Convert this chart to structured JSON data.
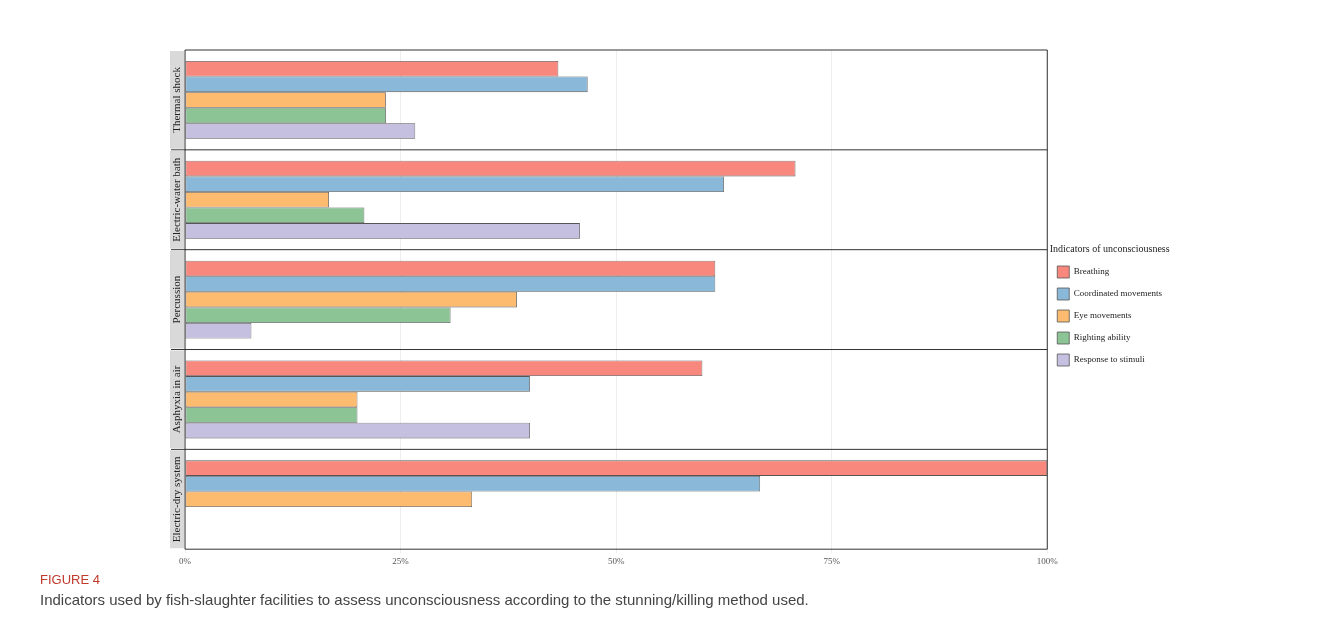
{
  "chart_data": {
    "type": "bar",
    "orientation": "horizontal",
    "legend_title": "Indicators of unconsciousness",
    "legend": "right",
    "grid": "x",
    "categories": [
      "Thermal shock",
      "Electric-water bath",
      "Percussion",
      "Asphyxia in air",
      "Electric-dry system"
    ],
    "series": [
      {
        "name": "Breathing",
        "color": "#f8877e",
        "values": [
          43.3,
          70.8,
          61.5,
          60,
          100
        ]
      },
      {
        "name": "Coordinated movements",
        "color": "#8ab8d8",
        "values": [
          46.7,
          62.5,
          61.5,
          40,
          66.7
        ]
      },
      {
        "name": "Eye movements",
        "color": "#fdbb6f",
        "values": [
          23.3,
          16.7,
          38.5,
          20,
          33.3
        ]
      },
      {
        "name": "Righting ability",
        "color": "#8dc496",
        "values": [
          23.3,
          20.8,
          30.8,
          20,
          null
        ]
      },
      {
        "name": "Response to stimuli",
        "color": "#c6c0e0",
        "values": [
          26.7,
          45.8,
          7.7,
          40,
          null
        ]
      }
    ],
    "xlim": [
      0,
      100
    ],
    "xticks": [
      {
        "value": 0,
        "label": "0%"
      },
      {
        "value": 25,
        "label": "25%"
      },
      {
        "value": 50,
        "label": "50%"
      },
      {
        "value": 75,
        "label": "75%"
      },
      {
        "value": 100,
        "label": "100%"
      }
    ],
    "annotations": [
      "FIGURE 4",
      "Indicators used by fish-slaughter facilities to assess unconsciousness according to the stunning/killing method used."
    ]
  }
}
